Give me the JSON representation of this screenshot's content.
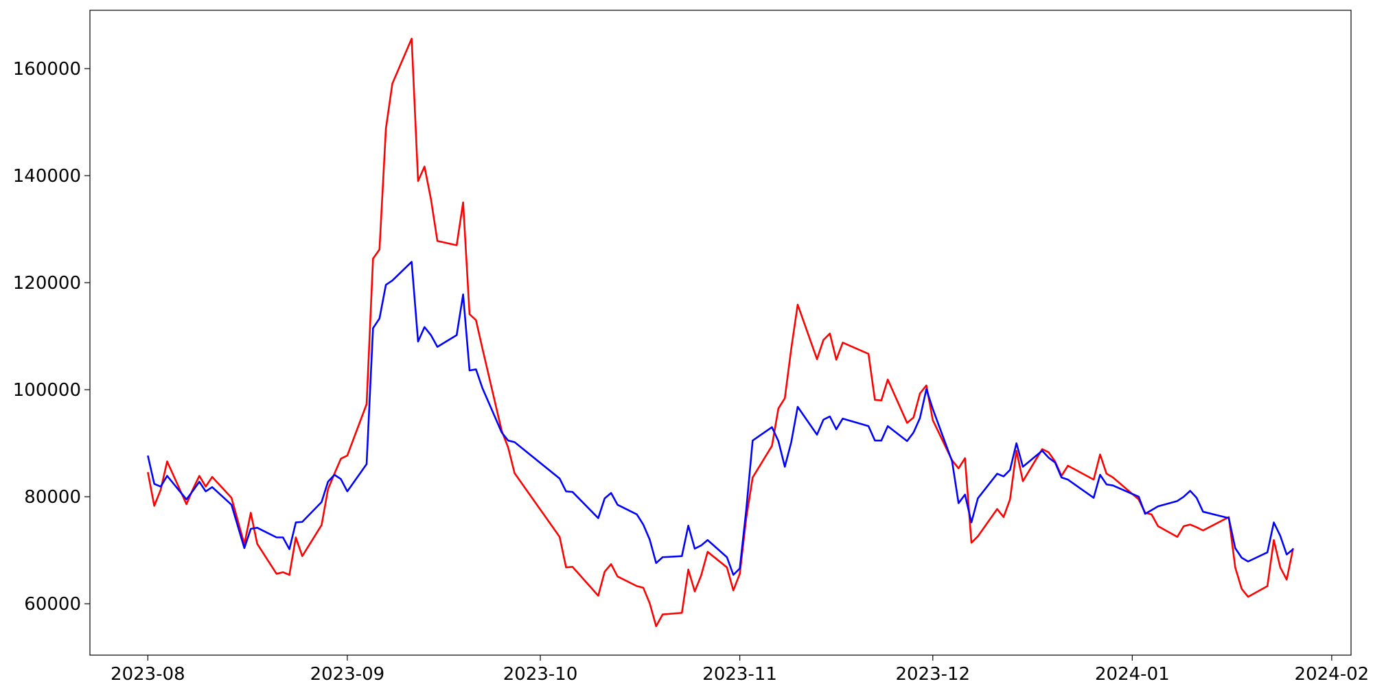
{
  "chart_data": {
    "type": "line",
    "x": [
      "2023-08-01",
      "2023-08-02",
      "2023-08-03",
      "2023-08-04",
      "2023-08-07",
      "2023-08-08",
      "2023-08-09",
      "2023-08-10",
      "2023-08-11",
      "2023-08-14",
      "2023-08-16",
      "2023-08-17",
      "2023-08-18",
      "2023-08-21",
      "2023-08-22",
      "2023-08-23",
      "2023-08-24",
      "2023-08-25",
      "2023-08-28",
      "2023-08-29",
      "2023-08-30",
      "2023-08-31",
      "2023-09-01",
      "2023-09-04",
      "2023-09-05",
      "2023-09-06",
      "2023-09-07",
      "2023-09-08",
      "2023-09-11",
      "2023-09-12",
      "2023-09-13",
      "2023-09-14",
      "2023-09-15",
      "2023-09-18",
      "2023-09-19",
      "2023-09-20",
      "2023-09-21",
      "2023-09-22",
      "2023-09-25",
      "2023-09-26",
      "2023-09-27",
      "2023-10-04",
      "2023-10-05",
      "2023-10-06",
      "2023-10-10",
      "2023-10-11",
      "2023-10-12",
      "2023-10-13",
      "2023-10-16",
      "2023-10-17",
      "2023-10-18",
      "2023-10-19",
      "2023-10-20",
      "2023-10-23",
      "2023-10-24",
      "2023-10-25",
      "2023-10-26",
      "2023-10-27",
      "2023-10-30",
      "2023-10-31",
      "2023-11-01",
      "2023-11-02",
      "2023-11-03",
      "2023-11-06",
      "2023-11-07",
      "2023-11-08",
      "2023-11-09",
      "2023-11-10",
      "2023-11-13",
      "2023-11-14",
      "2023-11-15",
      "2023-11-16",
      "2023-11-17",
      "2023-11-21",
      "2023-11-22",
      "2023-11-23",
      "2023-11-24",
      "2023-11-27",
      "2023-11-28",
      "2023-11-29",
      "2023-11-30",
      "2023-12-01",
      "2023-12-04",
      "2023-12-05",
      "2023-12-06",
      "2023-12-07",
      "2023-12-08",
      "2023-12-11",
      "2023-12-12",
      "2023-12-13",
      "2023-12-14",
      "2023-12-15",
      "2023-12-18",
      "2023-12-19",
      "2023-12-20",
      "2023-12-21",
      "2023-12-22",
      "2023-12-26",
      "2023-12-27",
      "2023-12-28",
      "2023-12-29",
      "2024-01-02",
      "2024-01-03",
      "2024-01-04",
      "2024-01-05",
      "2024-01-08",
      "2024-01-09",
      "2024-01-10",
      "2024-01-11",
      "2024-01-12",
      "2024-01-16",
      "2024-01-17",
      "2024-01-18",
      "2024-01-19",
      "2024-01-22",
      "2024-01-23",
      "2024-01-24",
      "2024-01-25",
      "2024-01-26"
    ],
    "series": [
      {
        "color": "#ff0000",
        "values": [
          84600,
          78300,
          81300,
          86600,
          78600,
          81400,
          83900,
          81900,
          83700,
          79800,
          71100,
          77000,
          71200,
          65600,
          65900,
          65400,
          72400,
          68900,
          74700,
          81400,
          84300,
          87100,
          87700,
          97300,
          124500,
          126200,
          148800,
          157200,
          165600,
          139000,
          141700,
          135600,
          127800,
          127000,
          135000,
          114100,
          113000,
          107700,
          92300,
          89200,
          84400,
          72500,
          66800,
          66900,
          61500,
          66000,
          67400,
          65100,
          63300,
          63000,
          60100,
          55800,
          58000,
          58300,
          66400,
          62300,
          65300,
          69700,
          66800,
          62500,
          65600,
          76000,
          83600,
          89500,
          96500,
          98400,
          107700,
          115900,
          105700,
          109300,
          110500,
          105600,
          108800,
          106700,
          98100,
          98000,
          101900,
          93800,
          94800,
          99300,
          100800,
          94300,
          86800,
          85300,
          87200,
          71400,
          72600,
          77700,
          76200,
          79500,
          88600,
          82900,
          88900,
          88300,
          86600,
          83900,
          85800,
          83200,
          87900,
          84300,
          83600,
          79500,
          77000,
          76700,
          74500,
          72500,
          74500,
          74800,
          74300,
          73700,
          76200,
          66800,
          62800,
          61300,
          63300,
          71900,
          66800,
          64500,
          70400
        ]
      },
      {
        "color": "#0000ff",
        "values": [
          87700,
          82400,
          81900,
          83900,
          79500,
          81100,
          82800,
          81000,
          81800,
          78500,
          70400,
          74000,
          74200,
          72400,
          72400,
          70200,
          75200,
          75300,
          79000,
          82800,
          84100,
          83300,
          81000,
          86100,
          111500,
          113300,
          119600,
          120400,
          123900,
          109000,
          111700,
          110200,
          108000,
          110200,
          117800,
          103600,
          103800,
          100300,
          92000,
          90500,
          90200,
          83400,
          81000,
          80900,
          76000,
          79700,
          80700,
          78500,
          76700,
          74800,
          72000,
          67600,
          68700,
          68900,
          74600,
          70300,
          70900,
          71900,
          68700,
          65400,
          66600,
          77500,
          90500,
          93000,
          90400,
          85600,
          90200,
          96800,
          91600,
          94400,
          95000,
          92600,
          94600,
          93200,
          90500,
          90500,
          93200,
          90400,
          92000,
          94700,
          100100,
          96400,
          86600,
          78800,
          80400,
          75200,
          79700,
          84300,
          83800,
          85000,
          90000,
          85600,
          88600,
          87300,
          86400,
          83600,
          83200,
          79800,
          84100,
          82300,
          82100,
          80000,
          76800,
          77500,
          78200,
          79200,
          80000,
          81100,
          79800,
          77200,
          76000,
          70400,
          68600,
          67900,
          69600,
          75200,
          72700,
          69200,
          70200
        ]
      }
    ],
    "xlim": [
      "2023-07-23",
      "2024-02-04"
    ],
    "xticks": [
      {
        "value": "2023-08-01",
        "label": "2023-08"
      },
      {
        "value": "2023-09-01",
        "label": "2023-09"
      },
      {
        "value": "2023-10-01",
        "label": "2023-10"
      },
      {
        "value": "2023-11-01",
        "label": "2023-11"
      },
      {
        "value": "2023-12-01",
        "label": "2023-12"
      },
      {
        "value": "2024-01-01",
        "label": "2024-01"
      },
      {
        "value": "2024-02-01",
        "label": "2024-02"
      }
    ],
    "ylim": [
      50400,
      170900
    ],
    "yticks": [
      60000,
      80000,
      100000,
      120000,
      140000,
      160000
    ],
    "grid": false
  }
}
